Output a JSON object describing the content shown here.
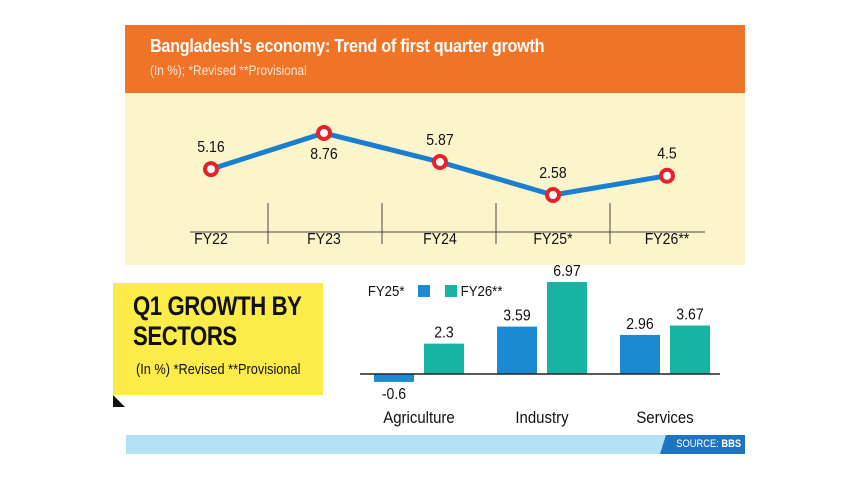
{
  "chart_data": [
    {
      "type": "line",
      "title": "Bangladesh's economy: Trend of first quarter growth",
      "subtitle": "(In %); *Revised **Provisional",
      "categories": [
        "FY22",
        "FY23",
        "FY24",
        "FY25*",
        "FY26**"
      ],
      "values": [
        5.16,
        8.76,
        5.87,
        2.58,
        4.5
      ],
      "value_labels": [
        "5.16",
        "8.76",
        "5.87",
        "2.58",
        "4.5"
      ],
      "colors": {
        "line": "#1a7fd0",
        "marker": "#e8202a",
        "header": "#f07427",
        "background": "#fcf5cb"
      }
    },
    {
      "type": "bar",
      "title": "Q1 GROWTH BY SECTORS",
      "subtitle": "(In %)  *Revised **Provisional",
      "categories": [
        "Agriculture",
        "Industry",
        "Services"
      ],
      "series": [
        {
          "name": "FY25*",
          "values": [
            -0.6,
            3.59,
            2.96
          ],
          "labels": [
            "-0.6",
            "3.59",
            "2.96"
          ],
          "color": "#1b8ad3"
        },
        {
          "name": "FY26**",
          "values": [
            2.3,
            6.97,
            3.67
          ],
          "labels": [
            "2.3",
            "6.97",
            "3.67"
          ],
          "color": "#17b3a3"
        }
      ],
      "legend": "top-left"
    }
  ],
  "source": {
    "prefix": "SOURCE: ",
    "name": "BBS"
  }
}
